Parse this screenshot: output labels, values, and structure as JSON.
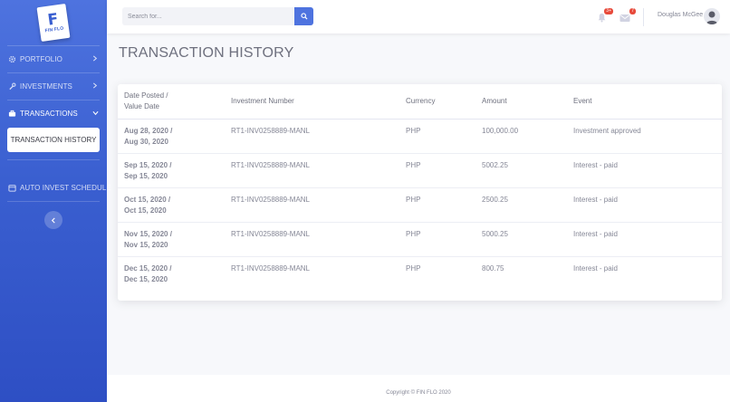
{
  "brand": {
    "logo_letter": "F",
    "logo_text": "FIN FLO"
  },
  "sidebar": {
    "items": [
      {
        "label": "PORTFOLIO",
        "icon": "gear-icon"
      },
      {
        "label": "INVESTMENTS",
        "icon": "wrench-icon"
      },
      {
        "label": "TRANSACTIONS",
        "icon": "briefcase-icon"
      },
      {
        "label": "AUTO INVEST SCHEDULE",
        "icon": "calendar-icon"
      }
    ],
    "submenu": {
      "label": "TRANSACTION HISTORY"
    }
  },
  "topbar": {
    "search_placeholder": "Search for...",
    "alerts_count": "3+",
    "messages_count": "7",
    "user_name": "Douglas McGee"
  },
  "page": {
    "title": "TRANSACTION HISTORY"
  },
  "table": {
    "headers": {
      "date_line1": "Date Posted /",
      "date_line2": "Value Date",
      "investment": "Investment Number",
      "currency": "Currency",
      "amount": "Amount",
      "event": "Event"
    },
    "rows": [
      {
        "posted": "Aug 28, 2020 /",
        "value": "Aug 30, 2020",
        "investment": "RT1-INV0258889-MANL",
        "currency": "PHP",
        "amount": "100,000.00",
        "event": "Investment approved"
      },
      {
        "posted": "Sep 15, 2020 /",
        "value": "Sep 15, 2020",
        "investment": "RT1-INV0258889-MANL",
        "currency": "PHP",
        "amount": "5002.25",
        "event": "Interest - paid"
      },
      {
        "posted": "Oct 15, 2020 /",
        "value": "Oct 15, 2020",
        "investment": "RT1-INV0258889-MANL",
        "currency": "PHP",
        "amount": "2500.25",
        "event": "Interest - paid"
      },
      {
        "posted": "Nov 15, 2020 /",
        "value": "Nov 15, 2020",
        "investment": "RT1-INV0258889-MANL",
        "currency": "PHP",
        "amount": "5000.25",
        "event": "Interest - paid"
      },
      {
        "posted": "Dec 15, 2020 /",
        "value": "Dec 15, 2020",
        "investment": "RT1-INV0258889-MANL",
        "currency": "PHP",
        "amount": "800.75",
        "event": "Interest - paid"
      }
    ]
  },
  "footer": {
    "copyright": "Copyright © FIN FLO 2020"
  },
  "colors": {
    "primary": "#4e73df",
    "danger": "#e74a3b"
  }
}
